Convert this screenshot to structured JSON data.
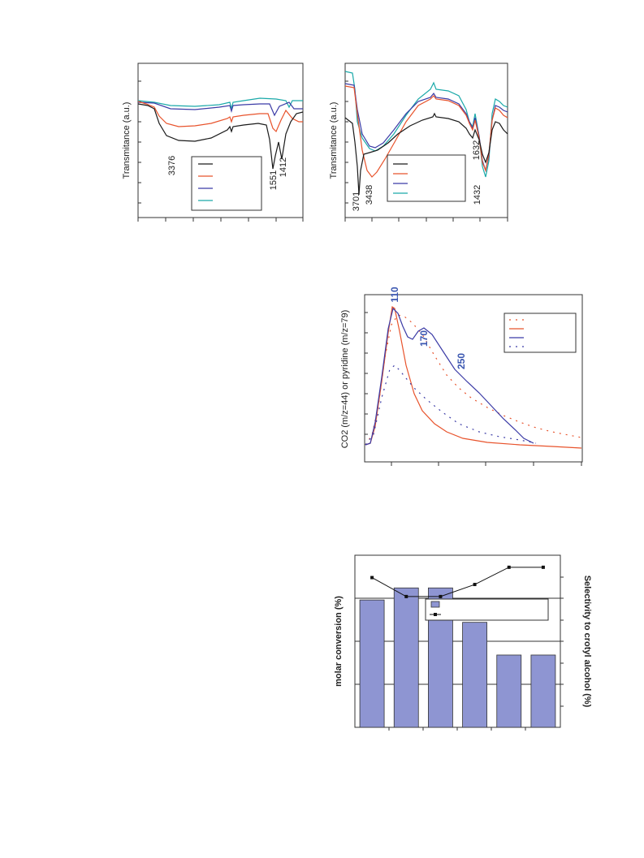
{
  "chart_data": [
    {
      "type": "line",
      "title": "",
      "ylabel": "Transmitance (a.u.)",
      "xlabel": "",
      "peak_labels": [
        "3376",
        "1551",
        "1412"
      ],
      "legend_location": "lower-right (rotated figure)",
      "series": [
        {
          "color": "#1a1a1a"
        },
        {
          "color": "#e8532c"
        },
        {
          "color": "#3b3ba6"
        },
        {
          "color": "#1aa9a9"
        }
      ]
    },
    {
      "type": "line",
      "title": "",
      "ylabel": "Transmitance (a.u.)",
      "xlabel": "",
      "peak_labels": [
        "3701",
        "3438",
        "1632",
        "1432"
      ],
      "legend_location": "lower-left (rotated figure)",
      "series": [
        {
          "color": "#1a1a1a"
        },
        {
          "color": "#e8532c"
        },
        {
          "color": "#3b3ba6"
        },
        {
          "color": "#1aa9a9"
        }
      ]
    },
    {
      "type": "line",
      "title": "",
      "ylabel": "CO2 (m/z=44) or pyridine (m/z=79)",
      "xlabel": "",
      "peak_labels": [
        "110",
        "170",
        "250"
      ],
      "legend_location": "top-right",
      "series": [
        {
          "style": "dotted",
          "color": "#e8532c"
        },
        {
          "style": "solid",
          "color": "#e8532c"
        },
        {
          "style": "solid",
          "color": "#3b3ba6"
        },
        {
          "style": "dotted",
          "color": "#3b3ba6"
        }
      ]
    },
    {
      "type": "bar",
      "title": "",
      "ylabel": "molar conversion (%)",
      "y2label": "Selectivity to crotyl alcohol (%)",
      "bar_color": "#8e95d2",
      "bar_values_fraction_of_axis": [
        0.74,
        0.81,
        0.81,
        0.61,
        0.42,
        0.42
      ],
      "selectivity_line_fraction_of_axis": [
        0.87,
        0.76,
        0.76,
        0.83,
        0.93,
        0.93
      ],
      "grid": true
    }
  ]
}
